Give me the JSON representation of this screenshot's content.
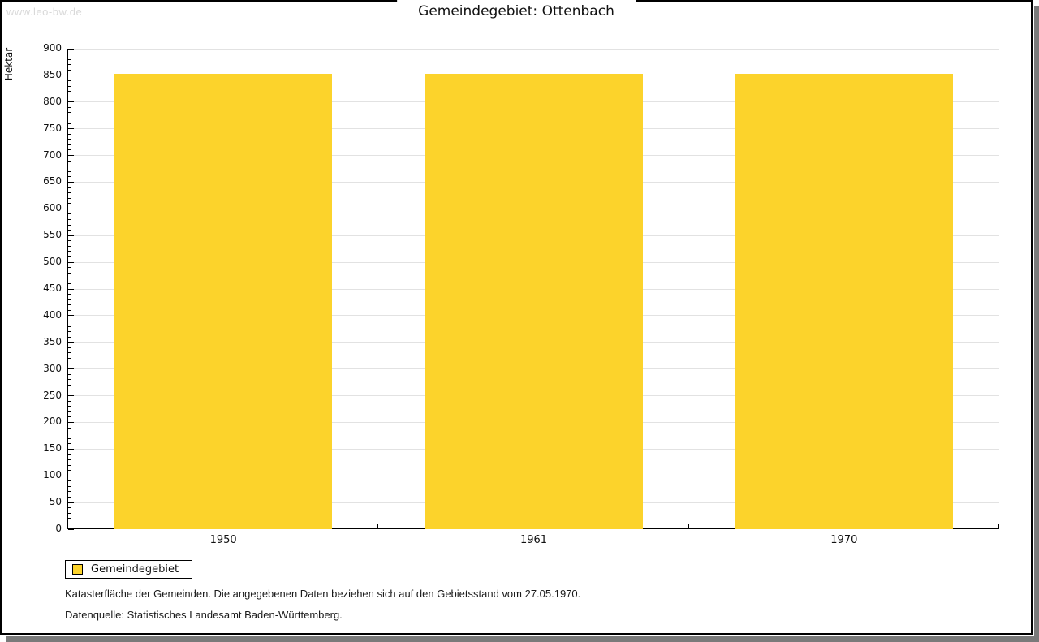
{
  "page": {
    "watermark": "www.leo-bw.de"
  },
  "chart_data": {
    "type": "bar",
    "title": "Gemeindegebiet: Ottenbach",
    "categories": [
      "1950",
      "1961",
      "1970"
    ],
    "series": [
      {
        "name": "Gemeindegebiet",
        "values": [
          853,
          853,
          853
        ]
      }
    ],
    "ylabel": "Hektar",
    "ylim": [
      0,
      900
    ],
    "ytick_step": 50,
    "yminor_step": 10,
    "grid": true,
    "legend_position": "bottom-left",
    "colors": {
      "bar": "#FCD32B",
      "grid": "#E2E2E2",
      "axis": "#000000",
      "shadow": "#7A7A7A",
      "watermark": "#D9D9D9"
    }
  },
  "legend": {
    "label": "Gemeindegebiet"
  },
  "footnotes": [
    "Katasterfläche der Gemeinden. Die angegebenen Daten beziehen sich auf den Gebietsstand vom 27.05.1970.",
    "Datenquelle: Statistisches Landesamt Baden-Württemberg."
  ]
}
